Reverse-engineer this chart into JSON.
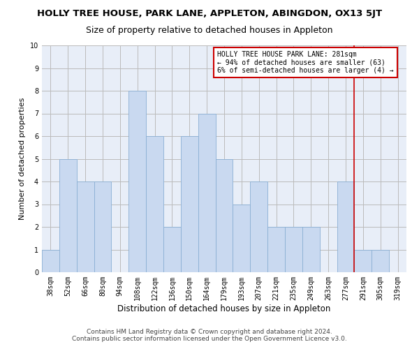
{
  "title": "HOLLY TREE HOUSE, PARK LANE, APPLETON, ABINGDON, OX13 5JT",
  "subtitle": "Size of property relative to detached houses in Appleton",
  "xlabel": "Distribution of detached houses by size in Appleton",
  "ylabel": "Number of detached properties",
  "categories": [
    "38sqm",
    "52sqm",
    "66sqm",
    "80sqm",
    "94sqm",
    "108sqm",
    "122sqm",
    "136sqm",
    "150sqm",
    "164sqm",
    "179sqm",
    "193sqm",
    "207sqm",
    "221sqm",
    "235sqm",
    "249sqm",
    "263sqm",
    "277sqm",
    "291sqm",
    "305sqm",
    "319sqm"
  ],
  "values": [
    1,
    5,
    4,
    4,
    0,
    8,
    6,
    2,
    6,
    7,
    5,
    3,
    4,
    2,
    2,
    2,
    0,
    4,
    1,
    1,
    0
  ],
  "bar_color": "#c9d9f0",
  "bar_edge_color": "#8aafd4",
  "grid_color": "#bbbbbb",
  "bg_color": "#e8eef8",
  "annotation_text": "HOLLY TREE HOUSE PARK LANE: 281sqm\n← 94% of detached houses are smaller (63)\n6% of semi-detached houses are larger (4) →",
  "annotation_box_color": "#cc0000",
  "ylim": [
    0,
    10
  ],
  "yticks": [
    0,
    1,
    2,
    3,
    4,
    5,
    6,
    7,
    8,
    9,
    10
  ],
  "footer": "Contains HM Land Registry data © Crown copyright and database right 2024.\nContains public sector information licensed under the Open Government Licence v3.0.",
  "title_fontsize": 9.5,
  "subtitle_fontsize": 9,
  "xlabel_fontsize": 8.5,
  "ylabel_fontsize": 8,
  "tick_fontsize": 7,
  "footer_fontsize": 6.5,
  "annot_fontsize": 7
}
